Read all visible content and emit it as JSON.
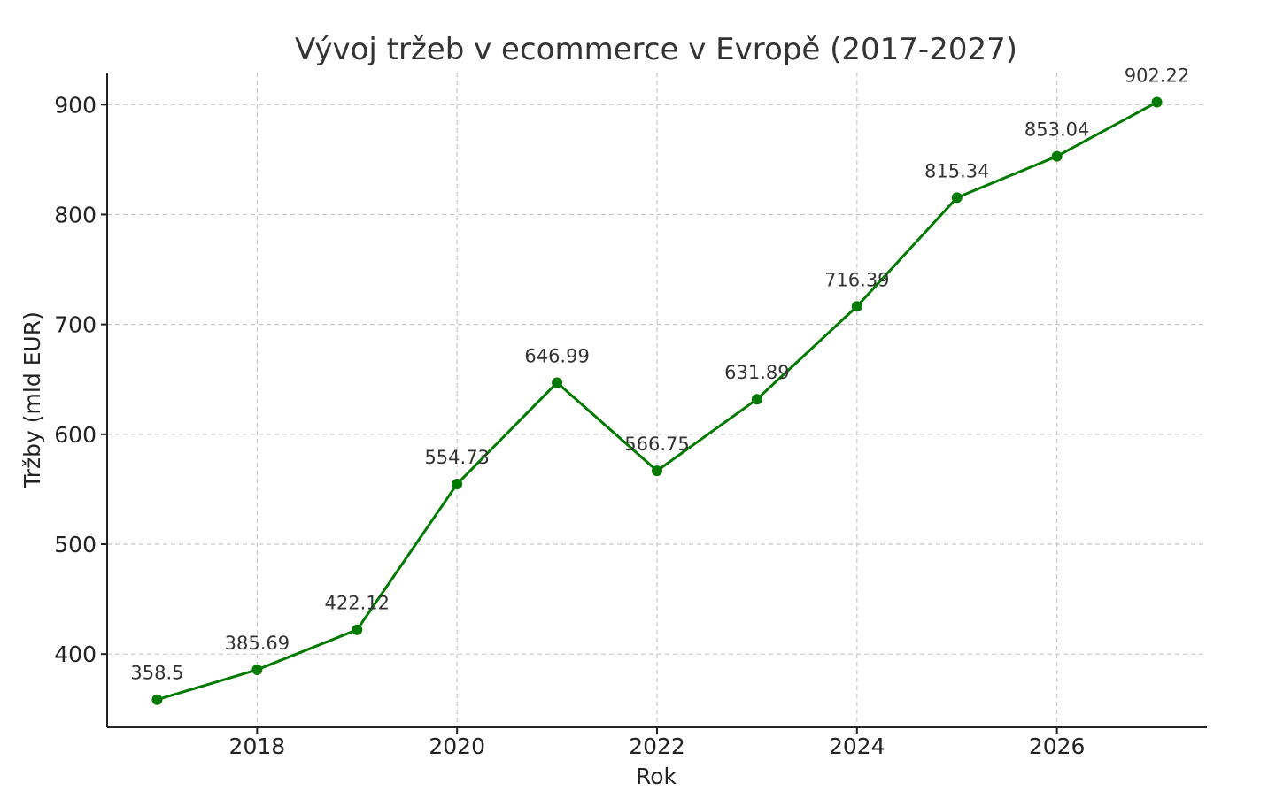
{
  "chart_data": {
    "type": "line",
    "title": "Vývoj tržeb v ecommerce v Evropě (2017-2027)",
    "xlabel": "Rok",
    "ylabel": "Tržby (mld EUR)",
    "x": [
      2017,
      2018,
      2019,
      2020,
      2021,
      2022,
      2023,
      2024,
      2025,
      2026,
      2027
    ],
    "series": [
      {
        "values": [
          358.5,
          385.69,
          422.12,
          554.73,
          646.99,
          566.75,
          631.89,
          716.39,
          815.34,
          853.04,
          902.22
        ],
        "color": "#007a00"
      }
    ],
    "data_labels": [
      "358.5",
      "385.69",
      "422.12",
      "554.73",
      "646.99",
      "566.75",
      "631.89",
      "716.39",
      "815.34",
      "853.04",
      "902.22"
    ],
    "xticks": [
      2018,
      2020,
      2022,
      2024,
      2026
    ],
    "xtick_labels": [
      "2018",
      "2020",
      "2022",
      "2024",
      "2026"
    ],
    "yticks": [
      400,
      500,
      600,
      700,
      800,
      900
    ],
    "ytick_labels": [
      "400",
      "500",
      "600",
      "700",
      "800",
      "900"
    ],
    "xlim": [
      2016.5,
      2027.5
    ],
    "ylim": [
      333.3,
      929.2
    ],
    "grid": true,
    "marker": "circle"
  }
}
